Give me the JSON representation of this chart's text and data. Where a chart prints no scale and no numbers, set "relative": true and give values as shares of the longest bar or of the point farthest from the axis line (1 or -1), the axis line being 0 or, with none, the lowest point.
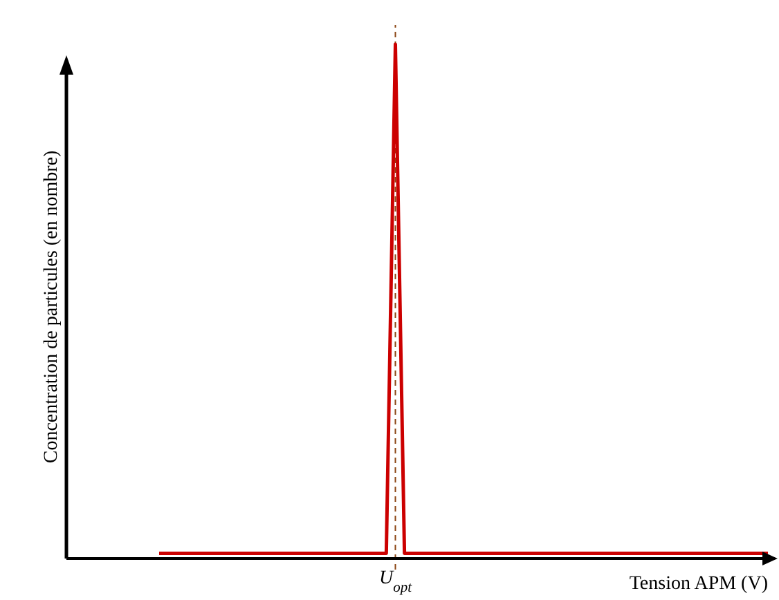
{
  "chart_data": {
    "type": "line",
    "relative": true,
    "xlabel": "Tension APM (V)",
    "ylabel": "Concentration de particules (en nombre)",
    "categories": [
      null,
      null,
      null,
      null,
      null,
      null,
      null,
      null,
      null,
      null,
      null,
      null,
      null,
      null,
      null,
      null,
      null,
      null,
      null,
      null,
      null,
      null,
      null,
      null,
      null,
      null,
      null,
      null,
      null,
      null,
      null,
      null,
      null,
      null,
      null,
      null,
      null,
      null,
      null,
      null,
      null,
      null,
      null,
      null,
      null,
      null,
      null,
      null,
      null,
      null,
      null,
      null,
      null,
      null,
      null,
      null,
      null,
      null,
      null,
      null,
      null,
      null,
      null,
      null,
      null,
      null,
      null,
      null
    ],
    "series": [
      {
        "color": "#cc0000",
        "values": [
          0.01,
          0.01,
          0.01,
          0.01,
          0.01,
          0.01,
          0.01,
          0.01,
          0.01,
          0.01,
          0.01,
          0.01,
          0.01,
          0.01,
          0.01,
          0.01,
          0.01,
          0.01,
          0.01,
          0.01,
          0.01,
          0.01,
          0.01,
          0.01,
          0.01,
          0.01,
          1,
          0.01,
          0.01,
          0.01,
          0.01,
          0.01,
          0.01,
          0.01,
          0.01,
          0.01,
          0.01,
          0.01,
          0.01,
          0.01,
          0.01,
          0.01,
          0.01,
          0.01,
          0.01,
          0.01,
          0.01,
          0.01,
          0.01,
          0.01,
          0.01,
          0.01,
          0.01,
          0.01,
          0.01,
          0.01,
          0.01,
          0.01,
          0.01,
          0.01,
          0.01,
          0.01,
          0.01,
          0.01,
          0.01,
          0.01,
          0.01,
          0.01
        ]
      }
    ],
    "annotations": [
      "U$_{opt}$"
    ],
    "marker": "none",
    "line_style": "solid"
  }
}
